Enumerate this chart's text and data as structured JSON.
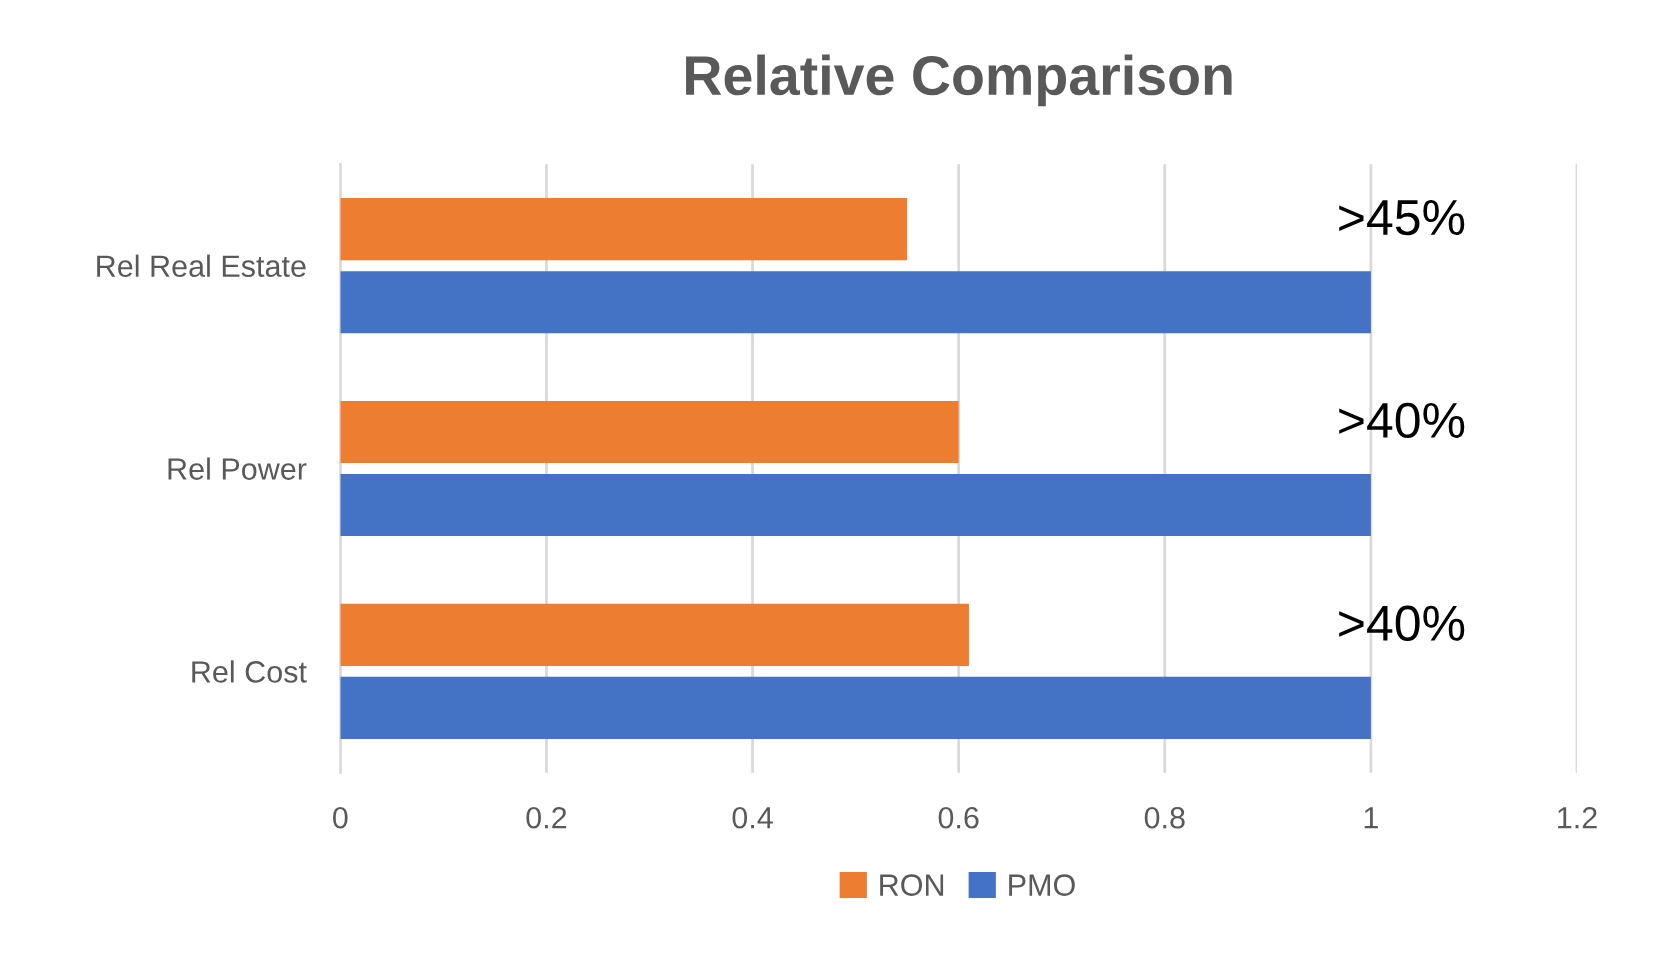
{
  "chart_data": {
    "type": "bar",
    "orientation": "horizontal",
    "title": "Relative Comparison",
    "categories": [
      "Rel Real Estate",
      "Rel Power",
      "Rel Cost"
    ],
    "series": [
      {
        "name": "RON",
        "color": "#ed7d31",
        "values": [
          0.55,
          0.6,
          0.61
        ]
      },
      {
        "name": "PMO",
        "color": "#4472c4",
        "values": [
          1,
          1,
          1
        ]
      }
    ],
    "xlim": [
      0,
      1.2
    ],
    "xticks": [
      0,
      0.2,
      0.4,
      0.6,
      0.8,
      1,
      1.2
    ],
    "grid": "x",
    "legend": "bottom",
    "annotations": [
      ">45%",
      ">40%",
      ">40%"
    ]
  }
}
